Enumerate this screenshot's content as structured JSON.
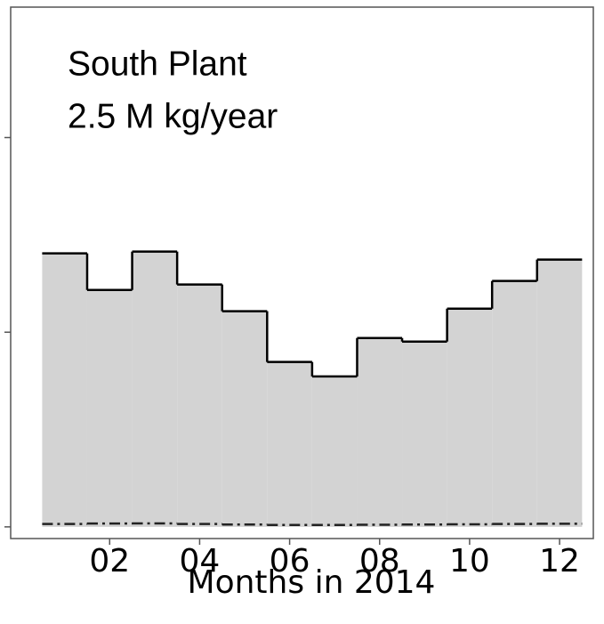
{
  "chart_data": {
    "type": "step",
    "annotations": [
      "South Plant",
      "2.5 M kg/year"
    ],
    "x_label": "Months in 2014",
    "x": [
      1,
      2,
      3,
      4,
      5,
      6,
      7,
      8,
      9,
      10,
      11,
      12
    ],
    "series": [
      {
        "color": "#d3d3d3",
        "values": [
          1.405,
          1.217,
          1.414,
          1.245,
          1.108,
          0.847,
          0.773,
          0.97,
          0.952,
          1.121,
          1.263,
          1.373
        ]
      },
      {
        "color": "#222222",
        "values": [
          0.015,
          0.017,
          0.018,
          0.015,
          0.012,
          0.01,
          0.01,
          0.011,
          0.012,
          0.013,
          0.015,
          0.016
        ]
      }
    ],
    "xlim": [
      -0.2,
      12.75
    ],
    "xticks": [
      {
        "value": 2,
        "label": "02"
      },
      {
        "value": 4,
        "label": "04"
      },
      {
        "value": 6,
        "label": "06"
      },
      {
        "value": 8,
        "label": "08"
      },
      {
        "value": 10,
        "label": "10"
      },
      {
        "value": 12,
        "label": "12"
      }
    ],
    "ylim": [
      -0.06,
      2.67
    ],
    "yticks": [
      0,
      1,
      2
    ]
  }
}
